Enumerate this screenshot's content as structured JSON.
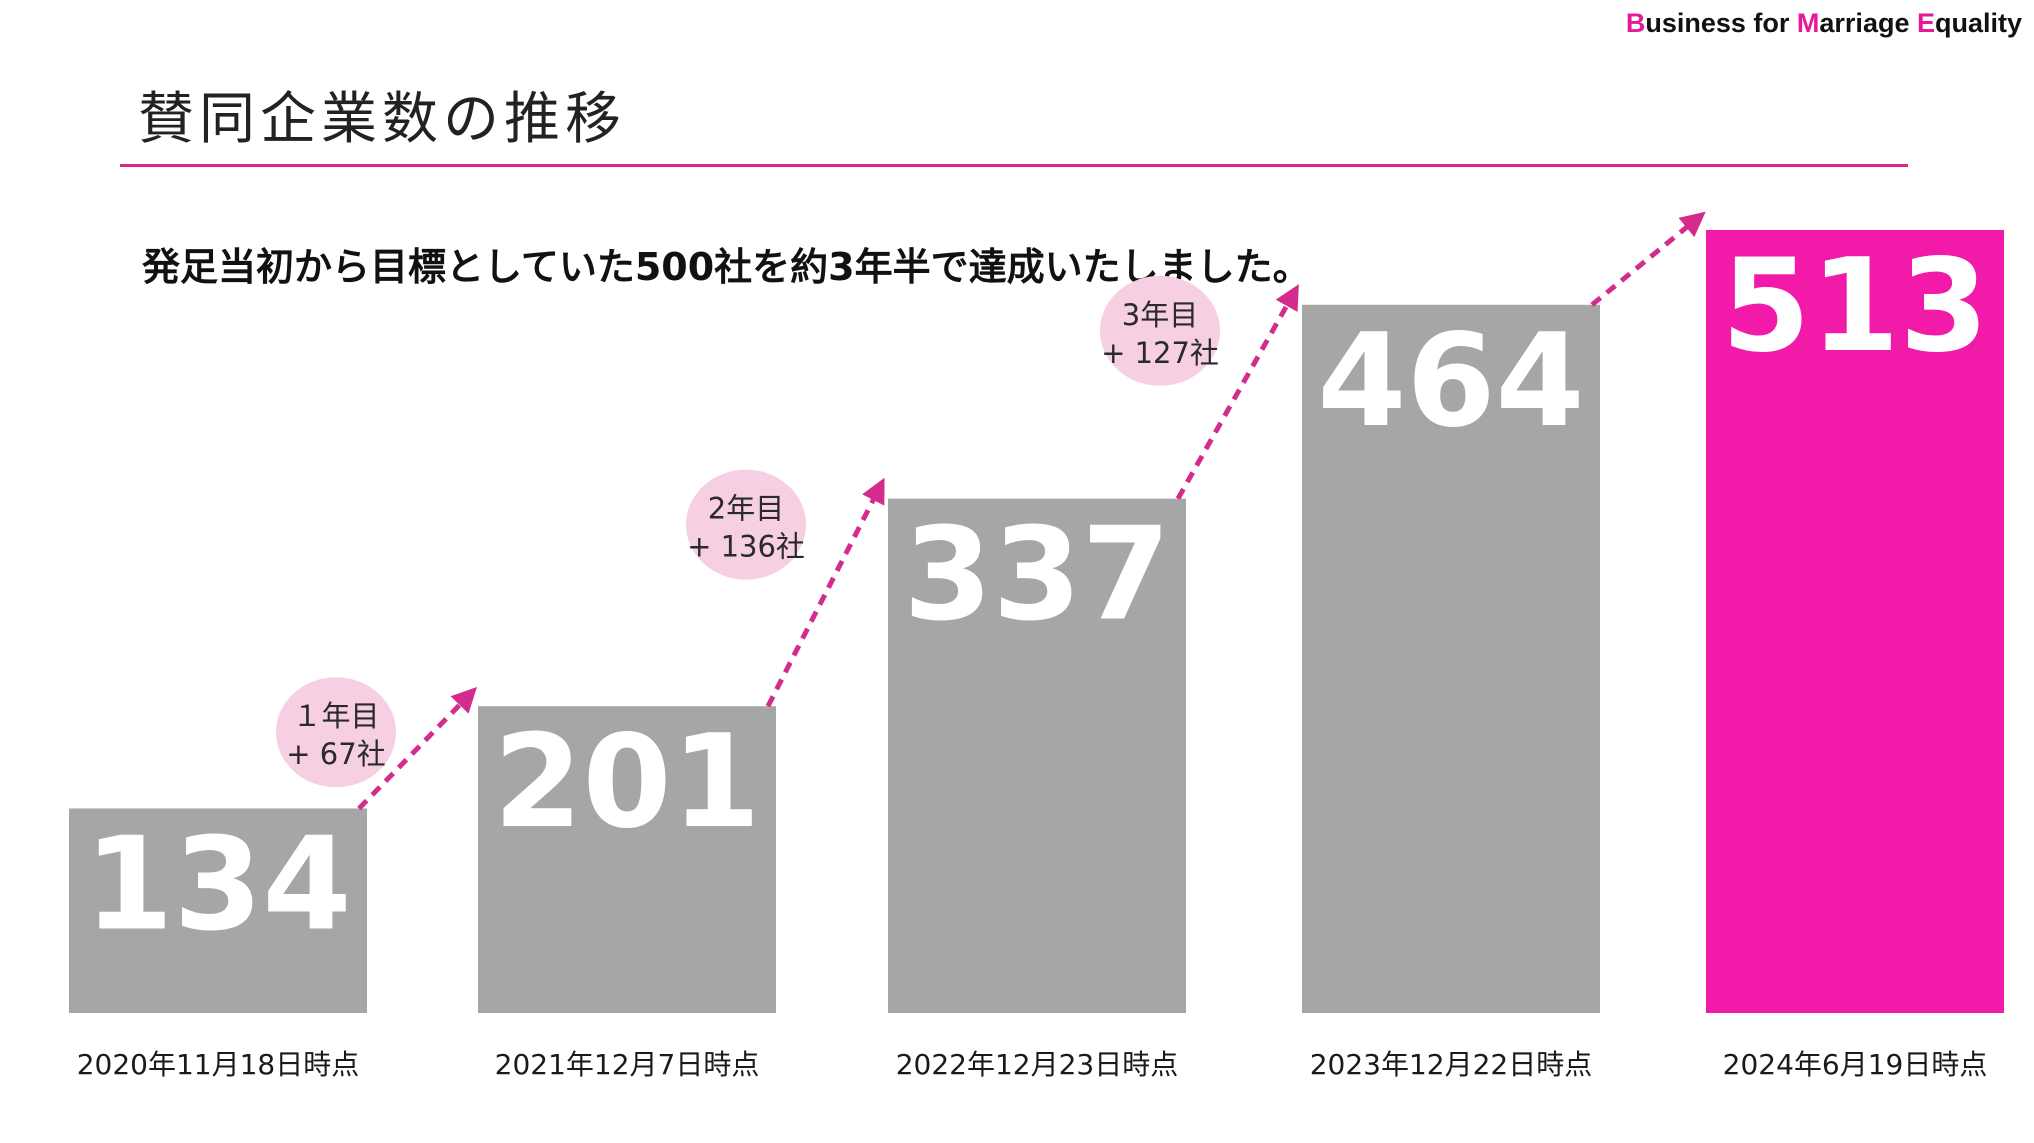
{
  "brand": {
    "b_initial": "B",
    "b_rest": "usiness for ",
    "m_initial": "M",
    "m_rest": "arriage ",
    "e_initial": "E",
    "e_rest": "quality"
  },
  "page": {
    "title": "賛同企業数の推移",
    "subtitle": "発足当初から目標としていた500社を約3年半で達成いたしました。"
  },
  "colors": {
    "bar_default": "#a6a6a6",
    "bar_highlight": "#f21aa8",
    "arrow": "#d42c8c",
    "bubble": "#f6cfe2",
    "accent": "#e6199a",
    "rule": "#d62687"
  },
  "chart_data": {
    "type": "bar",
    "title": "賛同企業数の推移",
    "categories": [
      "2020年11月18日時点",
      "2021年12月7日時点",
      "2022年12月23日時点",
      "2023年12月22日時点",
      "2024年6月19日時点"
    ],
    "values": [
      134,
      201,
      337,
      464,
      513
    ],
    "highlight_index": 4,
    "xlabel": "",
    "ylabel": "",
    "ylim": [
      0,
      513
    ],
    "grid": false,
    "legend": "none",
    "annotations": [
      {
        "between": [
          0,
          1
        ],
        "line1": "１年目",
        "line2": "+ 67社"
      },
      {
        "between": [
          1,
          2
        ],
        "line1": "2年目",
        "line2": "+ 136社"
      },
      {
        "between": [
          2,
          3
        ],
        "line1": "3年目",
        "line2": "+ 127社"
      }
    ]
  }
}
